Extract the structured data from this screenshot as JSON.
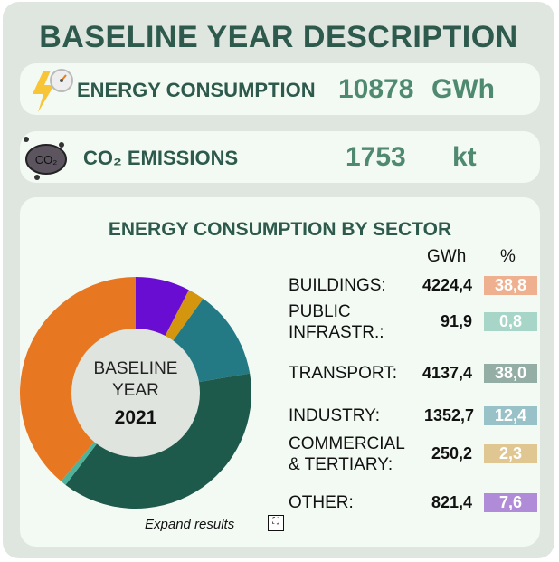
{
  "title": "BASELINE YEAR DESCRIPTION",
  "energy": {
    "label": "ENERGY CONSUMPTION",
    "value": "10878",
    "unit": "GWh"
  },
  "co2": {
    "label": "CO₂ EMISSIONS",
    "value": "1753",
    "unit": "kt",
    "icon_text": "CO₂"
  },
  "sector": {
    "title": "ENERGY CONSUMPTION BY SECTOR",
    "col_gwh": "GWh",
    "col_pct": "%",
    "center": {
      "line1": "BASELINE",
      "line2": "YEAR",
      "year": "2021"
    },
    "expand": "Expand results",
    "rows": [
      {
        "l1": "BUILDINGS:",
        "l2": "",
        "gwh": "4224,4",
        "pct": "38,8",
        "pct_color": "#efb08f"
      },
      {
        "l1": "PUBLIC",
        "l2": "INFRASTR.:",
        "gwh": "91,9",
        "pct": "0,8",
        "pct_color": "#a7d6c8"
      },
      {
        "l1": "TRANSPORT:",
        "l2": "",
        "gwh": "4137,4",
        "pct": "38,0",
        "pct_color": "#94aea5"
      },
      {
        "l1": "INDUSTRY:",
        "l2": "",
        "gwh": "1352,7",
        "pct": "12,4",
        "pct_color": "#98c1c8"
      },
      {
        "l1": "COMMERCIAL",
        "l2": "& TERTIARY:",
        "gwh": "250,2",
        "pct": "2,3",
        "pct_color": "#e0c690"
      },
      {
        "l1": "OTHER:",
        "l2": "",
        "gwh": "821,4",
        "pct": "7,6",
        "pct_color": "#b08cd8"
      }
    ]
  },
  "chart_data": {
    "type": "pie",
    "start": "top",
    "direction": "clockwise",
    "slices": [
      {
        "name": "OTHER",
        "value": 7.6,
        "color": "#6a0dd3"
      },
      {
        "name": "COMMERCIAL & TERTIARY",
        "value": 2.3,
        "color": "#d4960f"
      },
      {
        "name": "INDUSTRY",
        "value": 12.4,
        "color": "#237a85"
      },
      {
        "name": "TRANSPORT",
        "value": 38.0,
        "color": "#1e5a4c"
      },
      {
        "name": "PUBLIC INFRASTR.",
        "value": 0.8,
        "color": "#4fb39c"
      },
      {
        "name": "BUILDINGS",
        "value": 38.8,
        "color": "#e87722"
      }
    ]
  }
}
